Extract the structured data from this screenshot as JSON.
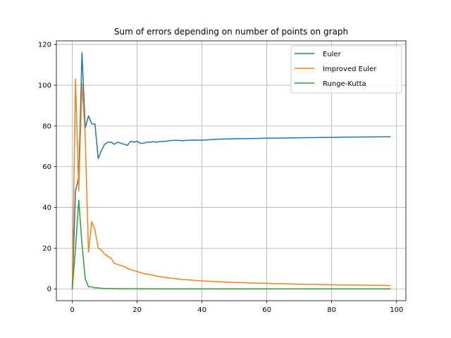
{
  "chart_data": {
    "type": "line",
    "title": "Sum of errors depending on number of points on graph",
    "xlabel": "",
    "ylabel": "",
    "xlim": [
      -4.9,
      102.9
    ],
    "ylim": [
      -5.8,
      121.8
    ],
    "xticks": [
      0,
      20,
      40,
      60,
      80,
      100
    ],
    "yticks": [
      0,
      20,
      40,
      60,
      80,
      100,
      120
    ],
    "grid": true,
    "legend_position": "top-right",
    "series": [
      {
        "name": "Euler",
        "color": "#1f77b4",
        "x": [
          0,
          1,
          2,
          3,
          4,
          5,
          6,
          7,
          8,
          9,
          10,
          11,
          12,
          13,
          14,
          15,
          16,
          17,
          18,
          19,
          20,
          21,
          22,
          23,
          24,
          25,
          26,
          27,
          28,
          29,
          30,
          32,
          34,
          36,
          38,
          40,
          45,
          50,
          55,
          60,
          65,
          70,
          75,
          80,
          85,
          90,
          98
        ],
        "y": [
          0,
          48,
          55,
          116,
          79,
          85,
          81,
          81,
          64,
          68,
          71,
          72,
          72,
          71,
          72,
          71.5,
          71,
          70.5,
          72.5,
          72,
          72.5,
          71.5,
          71.5,
          72,
          72,
          72.3,
          72,
          72.4,
          72.4,
          72.5,
          72.8,
          73,
          72.8,
          73,
          73.1,
          73,
          73.5,
          73.7,
          73.8,
          74,
          74.1,
          74.2,
          74.3,
          74.4,
          74.5,
          74.6,
          74.7
        ]
      },
      {
        "name": "Improved Euler",
        "color": "#ff7f0e",
        "x": [
          0,
          1,
          2,
          3,
          4,
          5,
          6,
          7,
          8,
          9,
          10,
          11,
          12,
          13,
          14,
          15,
          16,
          17,
          18,
          19,
          20,
          22,
          24,
          26,
          28,
          30,
          35,
          40,
          45,
          50,
          55,
          60,
          65,
          70,
          75,
          80,
          85,
          90,
          95,
          98
        ],
        "y": [
          0,
          103,
          48,
          101,
          75,
          18,
          33,
          29,
          20,
          19,
          17,
          16,
          15,
          12.5,
          12,
          11.5,
          11,
          10,
          9.5,
          9,
          8.5,
          7.5,
          7,
          6.3,
          5.8,
          5.3,
          4.5,
          3.9,
          3.5,
          3.2,
          2.9,
          2.7,
          2.5,
          2.3,
          2.2,
          2.0,
          1.9,
          1.8,
          1.7,
          1.6
        ]
      },
      {
        "name": "Runge-Kutta",
        "color": "#2ca02c",
        "x": [
          0,
          1,
          2,
          3,
          4,
          5,
          6,
          7,
          8,
          9,
          10,
          12,
          14,
          16,
          20,
          30,
          40,
          50,
          60,
          70,
          80,
          90,
          98
        ],
        "y": [
          0,
          20,
          43.5,
          22,
          5,
          1,
          1,
          0.5,
          0.5,
          0.3,
          0.2,
          0.15,
          0.1,
          0.05,
          0.02,
          0,
          0,
          0,
          0,
          0,
          0,
          0,
          0
        ]
      }
    ]
  }
}
